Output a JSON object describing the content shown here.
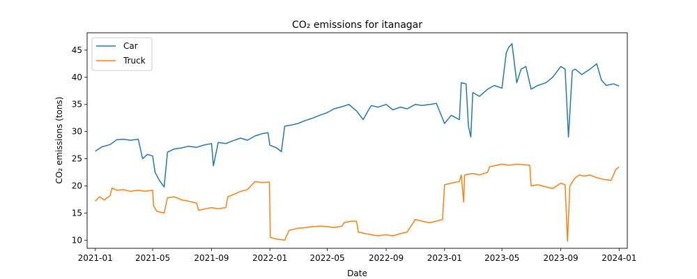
{
  "chart_data": {
    "type": "line",
    "title": "CO₂ emissions for itanagar",
    "xlabel": "Date",
    "ylabel": "CO₂ emissions (tons)",
    "xlim": [
      "2020-12-15",
      "2024-01-18"
    ],
    "ylim": [
      8.5,
      48.2
    ],
    "x_ticks": [
      "2021-01",
      "2021-05",
      "2021-09",
      "2022-01",
      "2022-05",
      "2022-09",
      "2023-01",
      "2023-05",
      "2023-09",
      "2024-01"
    ],
    "y_ticks": [
      10,
      15,
      20,
      25,
      30,
      35,
      40,
      45
    ],
    "grid": false,
    "legend_position": "top-left",
    "series": [
      {
        "name": "Car",
        "color": "#1f77b4",
        "points": [
          [
            "2021-01-01",
            26.4
          ],
          [
            "2021-01-15",
            27.2
          ],
          [
            "2021-02-01",
            27.6
          ],
          [
            "2021-02-15",
            28.5
          ],
          [
            "2021-03-01",
            28.6
          ],
          [
            "2021-03-15",
            28.4
          ],
          [
            "2021-04-01",
            28.6
          ],
          [
            "2021-04-10",
            25.0
          ],
          [
            "2021-04-20",
            25.8
          ],
          [
            "2021-05-01",
            25.5
          ],
          [
            "2021-05-06",
            22.5
          ],
          [
            "2021-05-15",
            21.0
          ],
          [
            "2021-05-25",
            19.8
          ],
          [
            "2021-06-01",
            26.2
          ],
          [
            "2021-06-15",
            26.8
          ],
          [
            "2021-07-01",
            27.0
          ],
          [
            "2021-07-15",
            27.3
          ],
          [
            "2021-08-01",
            27.1
          ],
          [
            "2021-08-15",
            27.5
          ],
          [
            "2021-09-01",
            27.8
          ],
          [
            "2021-09-05",
            23.7
          ],
          [
            "2021-09-15",
            28.0
          ],
          [
            "2021-10-01",
            27.8
          ],
          [
            "2021-10-15",
            28.3
          ],
          [
            "2021-11-01",
            28.8
          ],
          [
            "2021-11-15",
            28.4
          ],
          [
            "2021-12-01",
            29.2
          ],
          [
            "2021-12-15",
            29.6
          ],
          [
            "2021-12-28",
            29.8
          ],
          [
            "2022-01-01",
            27.5
          ],
          [
            "2022-01-15",
            27.0
          ],
          [
            "2022-01-25",
            26.3
          ],
          [
            "2022-02-01",
            31.0
          ],
          [
            "2022-02-15",
            31.2
          ],
          [
            "2022-03-01",
            31.5
          ],
          [
            "2022-03-15",
            32.0
          ],
          [
            "2022-04-01",
            32.5
          ],
          [
            "2022-04-15",
            33.0
          ],
          [
            "2022-05-01",
            33.5
          ],
          [
            "2022-05-15",
            34.2
          ],
          [
            "2022-06-01",
            34.6
          ],
          [
            "2022-06-15",
            35.0
          ],
          [
            "2022-07-01",
            33.8
          ],
          [
            "2022-07-15",
            32.2
          ],
          [
            "2022-07-25",
            33.8
          ],
          [
            "2022-08-01",
            34.8
          ],
          [
            "2022-08-15",
            34.5
          ],
          [
            "2022-09-01",
            35.0
          ],
          [
            "2022-09-15",
            34.0
          ],
          [
            "2022-10-01",
            34.5
          ],
          [
            "2022-10-15",
            34.2
          ],
          [
            "2022-11-01",
            35.0
          ],
          [
            "2022-11-15",
            34.8
          ],
          [
            "2022-12-01",
            35.0
          ],
          [
            "2022-12-15",
            35.2
          ],
          [
            "2023-01-01",
            31.5
          ],
          [
            "2023-01-15",
            33.0
          ],
          [
            "2023-02-01",
            32.2
          ],
          [
            "2023-02-05",
            39.0
          ],
          [
            "2023-02-15",
            38.8
          ],
          [
            "2023-02-20",
            31.0
          ],
          [
            "2023-02-25",
            29.0
          ],
          [
            "2023-03-01",
            37.2
          ],
          [
            "2023-03-15",
            36.5
          ],
          [
            "2023-04-01",
            37.8
          ],
          [
            "2023-04-15",
            38.5
          ],
          [
            "2023-05-01",
            38.0
          ],
          [
            "2023-05-10",
            44.5
          ],
          [
            "2023-05-15",
            45.5
          ],
          [
            "2023-05-22",
            46.2
          ],
          [
            "2023-06-01",
            39.0
          ],
          [
            "2023-06-10",
            41.5
          ],
          [
            "2023-06-20",
            42.0
          ],
          [
            "2023-07-01",
            37.8
          ],
          [
            "2023-07-15",
            38.5
          ],
          [
            "2023-08-01",
            39.0
          ],
          [
            "2023-08-15",
            40.0
          ],
          [
            "2023-09-01",
            42.0
          ],
          [
            "2023-09-10",
            41.5
          ],
          [
            "2023-09-17",
            29.0
          ],
          [
            "2023-09-25",
            41.2
          ],
          [
            "2023-10-01",
            41.5
          ],
          [
            "2023-10-15",
            40.5
          ],
          [
            "2023-11-01",
            41.5
          ],
          [
            "2023-11-15",
            42.5
          ],
          [
            "2023-11-25",
            39.5
          ],
          [
            "2023-12-05",
            38.5
          ],
          [
            "2023-12-20",
            38.8
          ],
          [
            "2024-01-01",
            38.4
          ]
        ]
      },
      {
        "name": "Truck",
        "color": "#ff7f0e",
        "points": [
          [
            "2021-01-01",
            17.2
          ],
          [
            "2021-01-10",
            18.0
          ],
          [
            "2021-01-20",
            17.4
          ],
          [
            "2021-02-01",
            18.2
          ],
          [
            "2021-02-05",
            19.6
          ],
          [
            "2021-02-15",
            19.2
          ],
          [
            "2021-03-01",
            19.3
          ],
          [
            "2021-03-15",
            19.0
          ],
          [
            "2021-04-01",
            19.2
          ],
          [
            "2021-04-15",
            19.0
          ],
          [
            "2021-05-01",
            19.2
          ],
          [
            "2021-05-03",
            16.3
          ],
          [
            "2021-05-10",
            15.3
          ],
          [
            "2021-05-25",
            15.0
          ],
          [
            "2021-06-01",
            17.8
          ],
          [
            "2021-06-15",
            18.0
          ],
          [
            "2021-07-01",
            17.4
          ],
          [
            "2021-07-15",
            17.2
          ],
          [
            "2021-08-01",
            16.8
          ],
          [
            "2021-08-05",
            15.5
          ],
          [
            "2021-08-20",
            15.8
          ],
          [
            "2021-09-01",
            16.0
          ],
          [
            "2021-09-15",
            15.8
          ],
          [
            "2021-10-01",
            16.0
          ],
          [
            "2021-10-05",
            18.0
          ],
          [
            "2021-10-20",
            18.5
          ],
          [
            "2021-11-01",
            19.0
          ],
          [
            "2021-11-15",
            19.3
          ],
          [
            "2021-12-01",
            20.8
          ],
          [
            "2021-12-15",
            20.6
          ],
          [
            "2021-12-31",
            20.7
          ],
          [
            "2022-01-02",
            10.5
          ],
          [
            "2022-01-15",
            10.2
          ],
          [
            "2022-02-01",
            10.0
          ],
          [
            "2022-02-10",
            11.8
          ],
          [
            "2022-03-01",
            12.2
          ],
          [
            "2022-03-15",
            12.3
          ],
          [
            "2022-04-01",
            12.5
          ],
          [
            "2022-04-15",
            12.6
          ],
          [
            "2022-05-01",
            12.5
          ],
          [
            "2022-05-15",
            12.3
          ],
          [
            "2022-06-01",
            12.6
          ],
          [
            "2022-06-05",
            13.2
          ],
          [
            "2022-06-20",
            13.5
          ],
          [
            "2022-07-01",
            13.5
          ],
          [
            "2022-07-05",
            11.5
          ],
          [
            "2022-07-20",
            11.2
          ],
          [
            "2022-08-01",
            11.0
          ],
          [
            "2022-08-15",
            10.8
          ],
          [
            "2022-09-01",
            11.0
          ],
          [
            "2022-09-15",
            10.8
          ],
          [
            "2022-10-01",
            11.2
          ],
          [
            "2022-10-15",
            11.5
          ],
          [
            "2022-11-01",
            13.8
          ],
          [
            "2022-11-15",
            13.5
          ],
          [
            "2022-12-01",
            13.2
          ],
          [
            "2022-12-15",
            13.5
          ],
          [
            "2022-12-28",
            13.8
          ],
          [
            "2023-01-01",
            20.2
          ],
          [
            "2023-01-15",
            20.5
          ],
          [
            "2023-02-01",
            20.8
          ],
          [
            "2023-02-05",
            22.0
          ],
          [
            "2023-02-10",
            17.0
          ],
          [
            "2023-02-12",
            22.0
          ],
          [
            "2023-03-01",
            22.3
          ],
          [
            "2023-03-15",
            22.0
          ],
          [
            "2023-04-01",
            22.5
          ],
          [
            "2023-04-05",
            23.5
          ],
          [
            "2023-04-20",
            23.8
          ],
          [
            "2023-05-01",
            24.0
          ],
          [
            "2023-05-15",
            23.8
          ],
          [
            "2023-06-01",
            24.0
          ],
          [
            "2023-06-15",
            23.9
          ],
          [
            "2023-06-28",
            23.8
          ],
          [
            "2023-07-01",
            20.0
          ],
          [
            "2023-07-15",
            20.2
          ],
          [
            "2023-08-01",
            19.8
          ],
          [
            "2023-08-15",
            19.5
          ],
          [
            "2023-09-01",
            20.5
          ],
          [
            "2023-09-10",
            20.2
          ],
          [
            "2023-09-15",
            9.8
          ],
          [
            "2023-09-20",
            20.0
          ],
          [
            "2023-10-01",
            21.5
          ],
          [
            "2023-10-10",
            22.0
          ],
          [
            "2023-10-20",
            21.8
          ],
          [
            "2023-11-01",
            22.0
          ],
          [
            "2023-11-15",
            21.5
          ],
          [
            "2023-12-01",
            21.2
          ],
          [
            "2023-12-15",
            21.0
          ],
          [
            "2023-12-25",
            23.0
          ],
          [
            "2024-01-01",
            23.5
          ]
        ]
      }
    ]
  }
}
